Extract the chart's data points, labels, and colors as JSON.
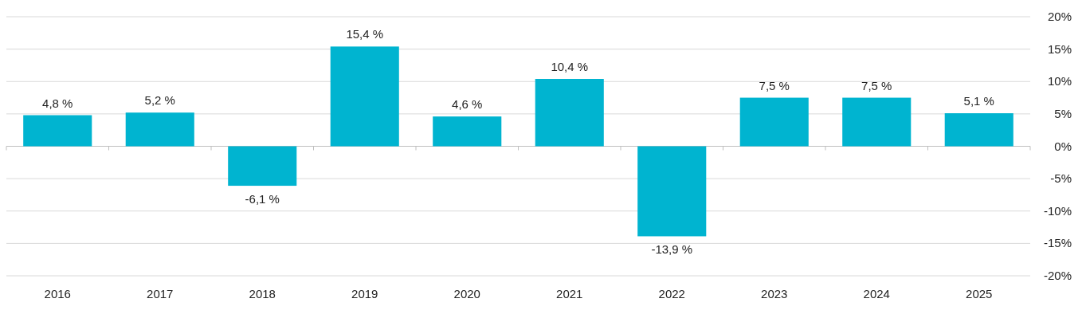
{
  "chart_data": {
    "type": "bar",
    "categories": [
      "2016",
      "2017",
      "2018",
      "2019",
      "2020",
      "2021",
      "2022",
      "2023",
      "2024",
      "2025"
    ],
    "series": [
      {
        "color": "#00b4d0",
        "values": [
          4.8,
          5.2,
          -6.1,
          15.4,
          4.6,
          10.4,
          -13.9,
          7.5,
          7.5,
          5.1
        ],
        "value_labels": [
          "4,8 %",
          "5,2 %",
          "-6,1 %",
          "15,4 %",
          "4,6 %",
          "10,4 %",
          "-13,9 %",
          "7,5 %",
          "7,5 %",
          "5,1 %"
        ]
      }
    ],
    "ylim": [
      -20,
      20
    ],
    "yticks": [
      {
        "value": -20,
        "label": "-20%"
      },
      {
        "value": -15,
        "label": "-15%"
      },
      {
        "value": -10,
        "label": "-10%"
      },
      {
        "value": -5,
        "label": "-5%"
      },
      {
        "value": 0,
        "label": "0%"
      },
      {
        "value": 5,
        "label": "5%"
      },
      {
        "value": 10,
        "label": "10%"
      },
      {
        "value": 15,
        "label": "15%"
      },
      {
        "value": 20,
        "label": "20%"
      }
    ],
    "grid": "y"
  }
}
